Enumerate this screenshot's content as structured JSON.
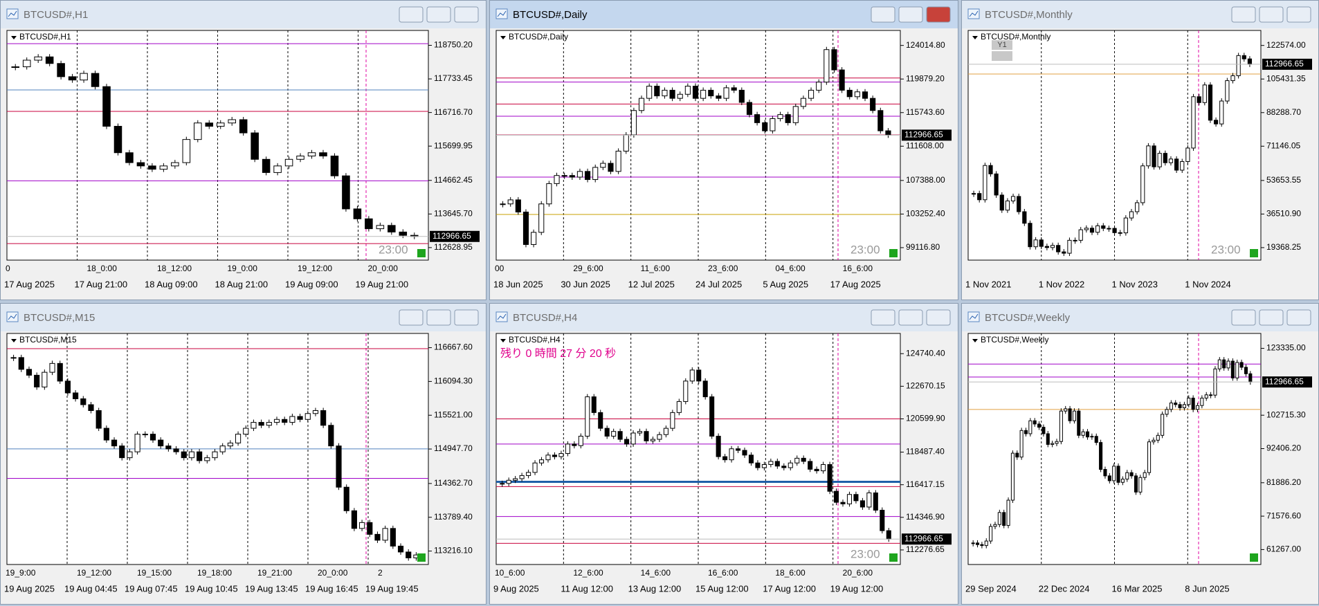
{
  "windows": [
    {
      "title": "BTCUSD#,H1",
      "label": "BTCUSD#,H1",
      "active": false,
      "ylim": [
        112250,
        119200
      ],
      "yticks": [
        {
          "value": 118750.2,
          "label": "118750.20"
        },
        117733.45,
        {
          "value": 116716.7,
          "label": "116716.70"
        },
        115699.95,
        114662.45,
        {
          "value": 113645.7,
          "label": "113645.70"
        },
        112628.95
      ],
      "current": 112966.65,
      "time_labels": [
        "0",
        "18_0:00",
        "18_12:00",
        "19_0:00",
        "19_12:00",
        "20_0:00"
      ],
      "date_labels": [
        "17 Aug 2025",
        "17 Aug 21:00",
        "18 Aug 09:00",
        "18 Aug 21:00",
        "19 Aug 09:00",
        "19 Aug 21:00"
      ],
      "timer": "23:00",
      "levels": [
        {
          "value": 118800,
          "color": "#a000c8"
        },
        {
          "value": 117400,
          "color": "#4f81bd"
        },
        {
          "value": 116750,
          "color": "#c8003c"
        },
        {
          "value": 114650,
          "color": "#a000c8"
        },
        {
          "value": 112750,
          "color": "#c8003c"
        }
      ],
      "closes": [
        118100,
        118300,
        118400,
        118200,
        117800,
        117700,
        117900,
        117500,
        116300,
        115500,
        115200,
        115100,
        115000,
        115100,
        115200,
        115900,
        116400,
        116300,
        116400,
        116500,
        116100,
        115300,
        114900,
        115100,
        115300,
        115400,
        115500,
        115400,
        114800,
        113800,
        113500,
        113200,
        113300,
        113100,
        113000,
        112967
      ]
    },
    {
      "title": "BTCUSD#,Daily",
      "label": "BTCUSD#,Daily",
      "active": true,
      "ylim": [
        97580,
        125860
      ],
      "yticks": [
        {
          "value": 124014.8,
          "label": "124014.80"
        },
        {
          "value": 119879.2,
          "label": "119879.20"
        },
        {
          "value": 115743.6,
          "label": "115743.60"
        },
        {
          "value": 111608,
          "label": "111608.00"
        },
        {
          "value": 107388,
          "label": "107388.00"
        },
        {
          "value": 103252.4,
          "label": "103252.40"
        },
        {
          "value": 99116.8,
          "label": "99116.80"
        }
      ],
      "current": 112966.65,
      "time_labels": [
        "00",
        "29_6:00",
        "11_6:00",
        "23_6:00",
        "04_6:00",
        "16_6:00"
      ],
      "date_labels": [
        "18 Jun 2025",
        "30 Jun 2025",
        "12 Jul 2025",
        "24 Jul 2025",
        "5 Aug 2025",
        "17 Aug 2025"
      ],
      "timer": "23:00",
      "levels": [
        {
          "value": 120000,
          "color": "#c8003c"
        },
        {
          "value": 119500,
          "color": "#a000c8"
        },
        {
          "value": 116800,
          "color": "#c8003c"
        },
        {
          "value": 115300,
          "color": "#a000c8"
        },
        {
          "value": 113000,
          "color": "#c8003c"
        },
        {
          "value": 107800,
          "color": "#a000c8"
        },
        {
          "value": 103200,
          "color": "#c8a000"
        }
      ],
      "closes": [
        104500,
        105000,
        103500,
        99500,
        101000,
        104500,
        107000,
        108000,
        108000,
        107800,
        108500,
        107500,
        109000,
        109500,
        108500,
        111000,
        113000,
        116000,
        117500,
        119000,
        117800,
        118500,
        117500,
        118000,
        119000,
        117500,
        118500,
        117800,
        117500,
        118800,
        118500,
        117000,
        115500,
        114500,
        113500,
        115000,
        115500,
        114500,
        116500,
        117500,
        118500,
        119500,
        123500,
        121000,
        118500,
        117700,
        118300,
        117500,
        116000,
        113500,
        112967
      ]
    },
    {
      "title": "BTCUSD#,Monthly",
      "label": "BTCUSD#,Monthly",
      "active": false,
      "button": "Y1",
      "ylim": [
        12990,
        130230
      ],
      "yticks": [
        {
          "value": 122574,
          "label": "122574.00"
        },
        105431.35,
        {
          "value": 88288.7,
          "label": "88288.70"
        },
        71146.05,
        53653.55,
        {
          "value": 36510.9,
          "label": "36510.90"
        },
        19368.25
      ],
      "current": 112966.65,
      "time_labels": [],
      "date_labels": [
        "1 Nov 2021",
        "1 Nov 2022",
        "1 Nov 2023",
        "1 Nov 2024"
      ],
      "timer": "23:00",
      "levels": [
        {
          "value": 108000,
          "color": "#e0a040"
        }
      ],
      "closes": [
        47000,
        43800,
        61300,
        57000,
        46200,
        38500,
        43200,
        45500,
        37700,
        31800,
        19800,
        23300,
        20000,
        19400,
        20500,
        17200,
        16500,
        23100,
        23100,
        28500,
        29300,
        27200,
        30500,
        29200,
        29200,
        27000,
        26900,
        34500,
        37700,
        42300,
        61100,
        71300,
        60600,
        67500,
        62700,
        64600,
        58900,
        63300,
        70200,
        96400,
        93400,
        102400,
        84400,
        82500,
        94200,
        104600,
        107100,
        117400,
        115700,
        112967
      ]
    },
    {
      "title": "BTCUSD#,M15",
      "label": "BTCUSD#,M15",
      "active": false,
      "ylim": [
        112988,
        116909
      ],
      "yticks": [
        {
          "value": 116667.6,
          "label": "116667.60"
        },
        {
          "value": 116094.3,
          "label": "116094.30"
        },
        {
          "value": 115521,
          "label": "115521.00"
        },
        {
          "value": 114947.7,
          "label": "114947.70"
        },
        {
          "value": 114362.7,
          "label": "114362.70"
        },
        {
          "value": 113789.4,
          "label": "113789.40"
        },
        {
          "value": 113216.1,
          "label": "113216.10"
        }
      ],
      "time_labels": [
        "19_9:00",
        "19_12:00",
        "19_15:00",
        "19_18:00",
        "19_21:00",
        "20_0:00",
        "2"
      ],
      "date_labels": [
        "19 Aug 2025",
        "19 Aug 04:45",
        "19 Aug 07:45",
        "19 Aug 10:45",
        "19 Aug 13:45",
        "19 Aug 16:45",
        "19 Aug 19:45"
      ],
      "levels": [
        {
          "value": 116650,
          "color": "#c8003c"
        },
        {
          "value": 114950,
          "color": "#4f81bd"
        },
        {
          "value": 114450,
          "color": "#a000c8"
        }
      ],
      "closes": [
        116500,
        116300,
        116200,
        116000,
        116250,
        116400,
        116100,
        115900,
        115800,
        115700,
        115600,
        115300,
        115100,
        115000,
        114800,
        114900,
        115200,
        115200,
        115100,
        115000,
        114950,
        114900,
        114800,
        114900,
        114750,
        114800,
        114900,
        115000,
        115050,
        115200,
        115300,
        115400,
        115350,
        115400,
        115450,
        115400,
        115500,
        115450,
        115550,
        115600,
        115350,
        115000,
        114300,
        113900,
        113600,
        113700,
        113500,
        113400,
        113600,
        113300,
        113200,
        113100,
        113150
      ]
    },
    {
      "title": "BTCUSD#,H4",
      "label": "BTCUSD#,H4",
      "active": false,
      "countdown": "残り 0 時間 27 分 20 秒",
      "ylim": [
        111352,
        126024
      ],
      "yticks": [
        {
          "value": 124740.4,
          "label": "124740.40"
        },
        122670.15,
        {
          "value": 120599.9,
          "label": "120599.90"
        },
        {
          "value": 118487.4,
          "label": "118487.40"
        },
        116417.15,
        {
          "value": 114346.9,
          "label": "114346.90"
        },
        112276.65
      ],
      "current": 112966.65,
      "time_labels": [
        "10_6:00",
        "12_6:00",
        "14_6:00",
        "16_6:00",
        "18_6:00",
        "20_6:00"
      ],
      "date_labels": [
        "9 Aug 2025",
        "11 Aug 12:00",
        "13 Aug 12:00",
        "15 Aug 12:00",
        "17 Aug 12:00",
        "19 Aug 12:00"
      ],
      "timer": "23:00",
      "levels": [
        {
          "value": 120600,
          "color": "#c8003c"
        },
        {
          "value": 119000,
          "color": "#a000c8"
        },
        {
          "value": 116600,
          "color": "#1f5fa8"
        },
        {
          "value": 116300,
          "color": "#c8003c"
        },
        {
          "value": 114400,
          "color": "#a000c8"
        },
        {
          "value": 112700,
          "color": "#c8003c"
        }
      ],
      "closes": [
        116500,
        116700,
        116800,
        117000,
        117200,
        117800,
        118000,
        118300,
        118200,
        118400,
        119000,
        118900,
        119500,
        122000,
        121000,
        120000,
        119500,
        119800,
        119300,
        119000,
        119700,
        119800,
        119200,
        119300,
        119600,
        120000,
        121000,
        121700,
        123000,
        123700,
        123000,
        122000,
        119500,
        118200,
        118000,
        118700,
        118600,
        118300,
        117800,
        117500,
        117700,
        117900,
        117600,
        117500,
        117800,
        118100,
        117900,
        117400,
        117300,
        117700,
        116000,
        115300,
        115200,
        115800,
        115400,
        115000,
        115900,
        114800,
        113500,
        112967
      ]
    },
    {
      "title": "BTCUSD#,Weekly",
      "label": "BTCUSD#,Weekly",
      "active": false,
      "ylim": [
        56660,
        127940
      ],
      "yticks": [
        {
          "value": 123335,
          "label": "123335.00"
        },
        {
          "value": 102715.3,
          "label": "102715.30"
        },
        {
          "value": 92406.2,
          "label": "92406.20"
        },
        {
          "value": 81886.2,
          "label": "81886.20"
        },
        {
          "value": 71576.6,
          "label": "71576.60"
        },
        {
          "value": 61267,
          "label": "61267.00"
        }
      ],
      "current": 112966.65,
      "time_labels": [],
      "date_labels": [
        "29 Sep 2024",
        "22 Dec 2024",
        "16 Mar 2025",
        "8 Jun 2025"
      ],
      "levels": [
        {
          "value": 118500,
          "color": "#a000c8"
        },
        {
          "value": 114500,
          "color": "#a000c8"
        },
        {
          "value": 104500,
          "color": "#e0a040"
        }
      ],
      "closes": [
        63300,
        62800,
        62500,
        63900,
        68400,
        69000,
        72700,
        68700,
        76500,
        91000,
        89800,
        98000,
        97000,
        101000,
        100000,
        99000,
        97000,
        93700,
        94000,
        94600,
        104000,
        104700,
        101000,
        104000,
        96500,
        97600,
        96000,
        96200,
        94300,
        86000,
        84000,
        82500,
        87000,
        82000,
        83000,
        85000,
        84000,
        79000,
        83500,
        85000,
        94500,
        95000,
        96500,
        103000,
        104500,
        106500,
        106000,
        105000,
        106000,
        108000,
        104500,
        105700,
        108000,
        109000,
        108900,
        117000,
        119800,
        117300,
        119400,
        114200,
        119000,
        117500,
        115500,
        112967
      ]
    }
  ]
}
